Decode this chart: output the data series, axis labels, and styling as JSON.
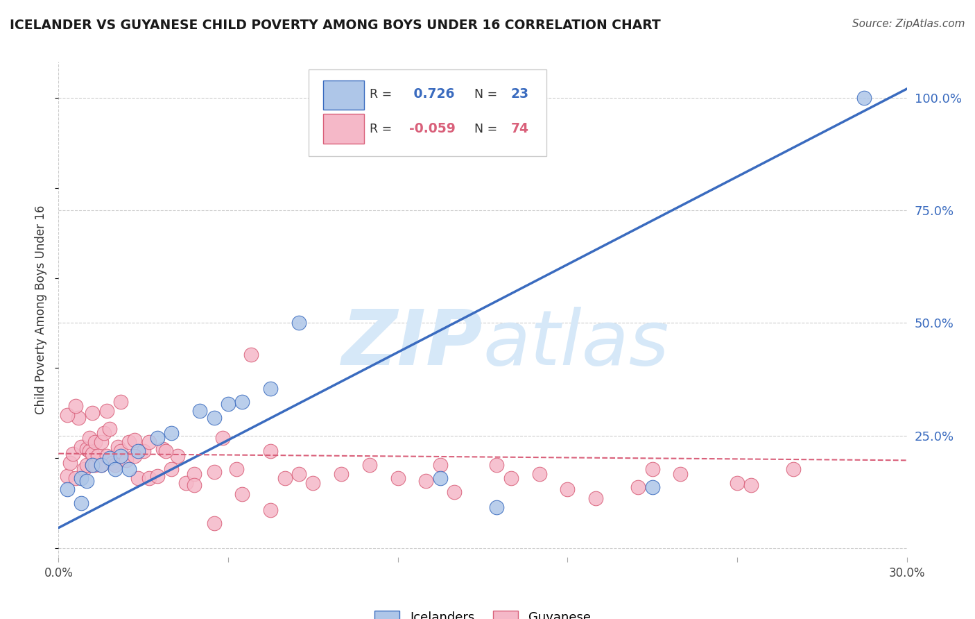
{
  "title": "ICELANDER VS GUYANESE CHILD POVERTY AMONG BOYS UNDER 16 CORRELATION CHART",
  "source": "Source: ZipAtlas.com",
  "ylabel": "Child Poverty Among Boys Under 16",
  "xlim": [
    0.0,
    0.3
  ],
  "ylim": [
    -0.02,
    1.08
  ],
  "ytick_vals": [
    0.0,
    0.25,
    0.5,
    0.75,
    1.0
  ],
  "xtick_vals": [
    0.0,
    0.06,
    0.12,
    0.18,
    0.24,
    0.3
  ],
  "xtick_labels": [
    "0.0%",
    "",
    "",
    "",
    "",
    "30.0%"
  ],
  "blue_R": "0.726",
  "blue_N": "23",
  "pink_R": "-0.059",
  "pink_N": "74",
  "blue_color": "#aec6e8",
  "pink_color": "#f5b8c8",
  "blue_line_color": "#3a6bbf",
  "pink_line_color": "#d9607a",
  "watermark_color": "#d6e8f8",
  "background_color": "#ffffff",
  "grid_color": "#cccccc",
  "blue_scatter_x": [
    0.003,
    0.008,
    0.008,
    0.01,
    0.012,
    0.015,
    0.018,
    0.02,
    0.022,
    0.025,
    0.028,
    0.035,
    0.04,
    0.05,
    0.055,
    0.06,
    0.065,
    0.075,
    0.085,
    0.135,
    0.155,
    0.21,
    0.285
  ],
  "blue_scatter_y": [
    0.13,
    0.1,
    0.155,
    0.15,
    0.185,
    0.185,
    0.2,
    0.175,
    0.205,
    0.175,
    0.215,
    0.245,
    0.255,
    0.305,
    0.29,
    0.32,
    0.325,
    0.355,
    0.5,
    0.155,
    0.09,
    0.135,
    1.0
  ],
  "pink_scatter_x": [
    0.003,
    0.004,
    0.005,
    0.006,
    0.007,
    0.008,
    0.009,
    0.01,
    0.01,
    0.011,
    0.011,
    0.012,
    0.012,
    0.013,
    0.013,
    0.014,
    0.015,
    0.015,
    0.016,
    0.017,
    0.018,
    0.019,
    0.02,
    0.021,
    0.022,
    0.024,
    0.025,
    0.027,
    0.028,
    0.03,
    0.032,
    0.035,
    0.037,
    0.04,
    0.042,
    0.045,
    0.048,
    0.055,
    0.058,
    0.063,
    0.068,
    0.075,
    0.08,
    0.085,
    0.09,
    0.1,
    0.11,
    0.12,
    0.13,
    0.135,
    0.14,
    0.155,
    0.16,
    0.17,
    0.18,
    0.19,
    0.205,
    0.22,
    0.24,
    0.26,
    0.003,
    0.006,
    0.012,
    0.017,
    0.022,
    0.027,
    0.032,
    0.038,
    0.048,
    0.055,
    0.065,
    0.075,
    0.21,
    0.245
  ],
  "pink_scatter_y": [
    0.16,
    0.19,
    0.21,
    0.155,
    0.29,
    0.225,
    0.175,
    0.22,
    0.185,
    0.215,
    0.245,
    0.185,
    0.21,
    0.185,
    0.235,
    0.205,
    0.185,
    0.235,
    0.255,
    0.205,
    0.265,
    0.19,
    0.185,
    0.225,
    0.215,
    0.195,
    0.235,
    0.24,
    0.155,
    0.215,
    0.155,
    0.16,
    0.22,
    0.175,
    0.205,
    0.145,
    0.165,
    0.17,
    0.245,
    0.175,
    0.43,
    0.215,
    0.155,
    0.165,
    0.145,
    0.165,
    0.185,
    0.155,
    0.15,
    0.185,
    0.125,
    0.185,
    0.155,
    0.165,
    0.13,
    0.11,
    0.135,
    0.165,
    0.145,
    0.175,
    0.295,
    0.315,
    0.3,
    0.305,
    0.325,
    0.205,
    0.235,
    0.215,
    0.14,
    0.055,
    0.12,
    0.085,
    0.175,
    0.14
  ],
  "blue_trend_x": [
    0.0,
    0.3
  ],
  "blue_trend_y": [
    0.045,
    1.02
  ],
  "pink_trend_x": [
    0.0,
    0.3
  ],
  "pink_trend_y": [
    0.21,
    0.195
  ],
  "right_ytick_labels": [
    "100.0%",
    "75.0%",
    "50.0%",
    "25.0%"
  ],
  "right_ytick_vals": [
    1.0,
    0.75,
    0.5,
    0.25
  ],
  "legend_items": [
    {
      "label": "Icelanders",
      "color": "#aec6e8",
      "edge": "#3a6bbf"
    },
    {
      "label": "Guyanese",
      "color": "#f5b8c8",
      "edge": "#d9607a"
    }
  ]
}
